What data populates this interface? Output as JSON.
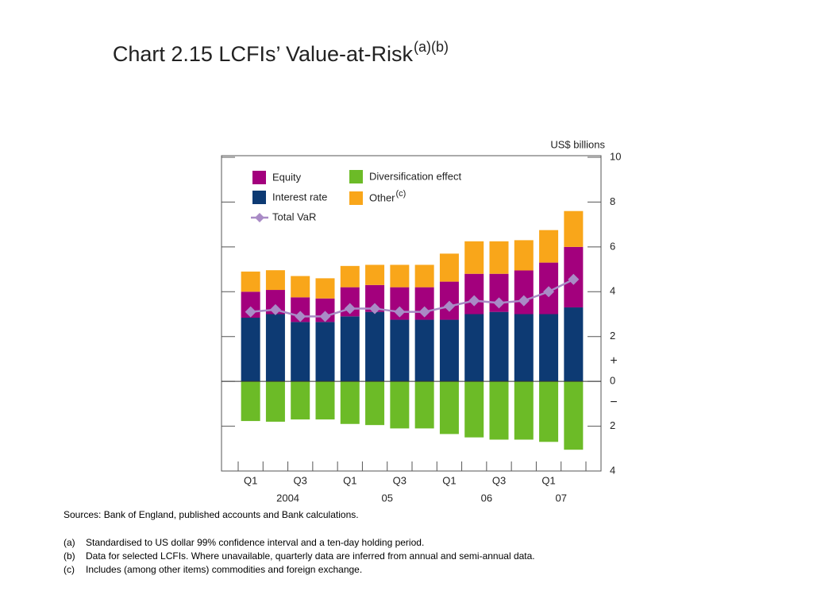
{
  "chart_data": {
    "type": "stacked-bar-line",
    "title": "Chart 2.15  LCFIs’ Value-at-Risk",
    "title_superscript": "(a)(b)",
    "y_axis_label": "US$ billions",
    "positive_sign": "+",
    "negative_sign": "−",
    "categories": [
      "Q1",
      null,
      "Q3",
      null,
      "Q1",
      null,
      "Q3",
      null,
      "Q1",
      null,
      "Q3",
      null,
      "Q1",
      null
    ],
    "year_groups": [
      {
        "label": "2004",
        "from": 0,
        "to": 3
      },
      {
        "label": "05",
        "from": 4,
        "to": 7
      },
      {
        "label": "06",
        "from": 8,
        "to": 11
      },
      {
        "label": "07",
        "from": 12,
        "to": 13
      }
    ],
    "series": [
      {
        "name": "Equity",
        "kind": "bar",
        "color": "#a3007d",
        "values": [
          1.16,
          1.08,
          1.1,
          1.05,
          1.3,
          1.2,
          1.45,
          1.45,
          1.7,
          1.8,
          1.7,
          1.95,
          2.3,
          2.7
        ]
      },
      {
        "name": "Interest rate",
        "kind": "bar",
        "color": "#0d3a73",
        "values": [
          2.84,
          3.0,
          2.65,
          2.65,
          2.9,
          3.1,
          2.75,
          2.75,
          2.75,
          3.0,
          3.1,
          3.0,
          3.0,
          3.3
        ]
      },
      {
        "name": "Total VaR",
        "kind": "line",
        "color": "#a98bc6",
        "values": [
          3.1,
          3.2,
          2.9,
          2.9,
          3.25,
          3.25,
          3.1,
          3.1,
          3.35,
          3.6,
          3.5,
          3.6,
          4.0,
          4.55
        ]
      },
      {
        "name": "Diversification effect",
        "kind": "bar",
        "color": "#6cbb27",
        "values": [
          -1.77,
          -1.8,
          -1.7,
          -1.7,
          -1.9,
          -1.95,
          -2.1,
          -2.1,
          -2.35,
          -2.5,
          -2.6,
          -2.6,
          -2.7,
          -3.05
        ]
      },
      {
        "name": "Other",
        "name_superscript": "(c)",
        "kind": "bar",
        "color": "#f9a61a",
        "values": [
          0.9,
          0.88,
          0.95,
          0.9,
          0.95,
          0.9,
          1.0,
          1.0,
          1.25,
          1.45,
          1.45,
          1.35,
          1.45,
          1.6
        ]
      }
    ],
    "ylim": [
      -4,
      10
    ],
    "yticks": [
      {
        "value": -4,
        "label": "4"
      },
      {
        "value": -2,
        "label": "2"
      },
      0,
      2,
      4,
      6,
      8,
      10
    ],
    "sources": "Sources:  Bank of England, published accounts and Bank calculations.",
    "notes": [
      {
        "label": "(a)",
        "text": "Standardised to US dollar 99% confidence interval and a ten-day holding period."
      },
      {
        "label": "(b)",
        "text": "Data for selected LCFIs.  Where unavailable, quarterly data are inferred from annual and semi-annual data."
      },
      {
        "label": "(c)",
        "text": "Includes (among other items) commodities and foreign exchange."
      }
    ]
  }
}
